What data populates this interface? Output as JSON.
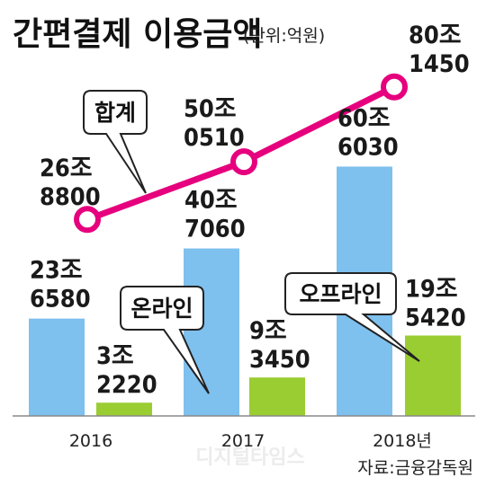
{
  "chart_data": {
    "type": "bar",
    "title": "간편결제 이용금액",
    "unit": "(단위:억원)",
    "categories": [
      "2016",
      "2017",
      "2018년"
    ],
    "series": [
      {
        "name": "온라인",
        "color": "#7ec0ee",
        "values": [
          236580,
          407060,
          606030
        ],
        "labels": [
          [
            "23조",
            "6580"
          ],
          [
            "40조",
            "7060"
          ],
          [
            "60조",
            "6030"
          ]
        ]
      },
      {
        "name": "오프라인",
        "color": "#9acd32",
        "values": [
          32220,
          93450,
          195420
        ],
        "labels": [
          [
            "3조",
            "2220"
          ],
          [
            "9조",
            "3450"
          ],
          [
            "19조",
            "5420"
          ]
        ]
      },
      {
        "name": "합계",
        "color": "#e6007e",
        "type": "line",
        "values": [
          268800,
          500510,
          801450
        ],
        "labels": [
          [
            "26조",
            "8800"
          ],
          [
            "50조",
            "0510"
          ],
          [
            "80조",
            "1450"
          ]
        ]
      }
    ],
    "source": "자료:금융감독원",
    "watermark": "디지털타임스"
  }
}
